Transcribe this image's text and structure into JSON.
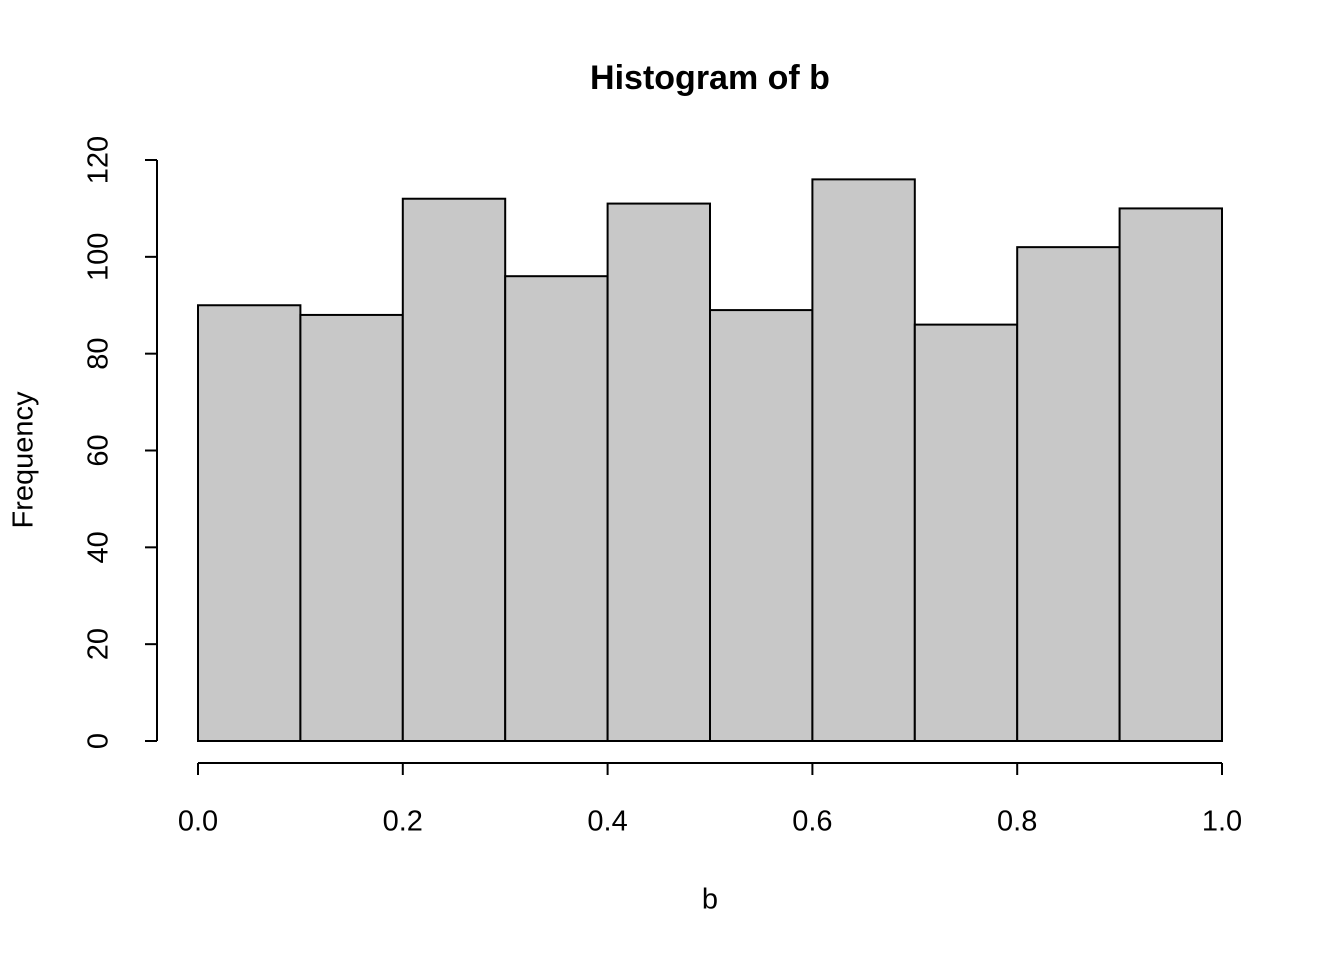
{
  "chart_data": {
    "type": "histogram",
    "title": "Histogram of b",
    "x_label": "b",
    "y_label": "Frequency",
    "bins": [
      0,
      0.1,
      0.2,
      0.3,
      0.4,
      0.5,
      0.6,
      0.7,
      0.8,
      0.9,
      1
    ],
    "values": [
      90,
      88,
      112,
      96,
      111,
      89,
      116,
      86,
      102,
      110
    ],
    "color": "#c8c8c8",
    "xlim": [
      0,
      1
    ],
    "xticks": [
      {
        "value": 0,
        "label": "0.0"
      },
      0.2,
      0.4,
      0.6,
      0.8,
      {
        "value": 1,
        "label": "1.0"
      }
    ],
    "ylim": [
      0,
      120
    ],
    "yticks": [
      0,
      20,
      40,
      60,
      80,
      100,
      120
    ]
  }
}
